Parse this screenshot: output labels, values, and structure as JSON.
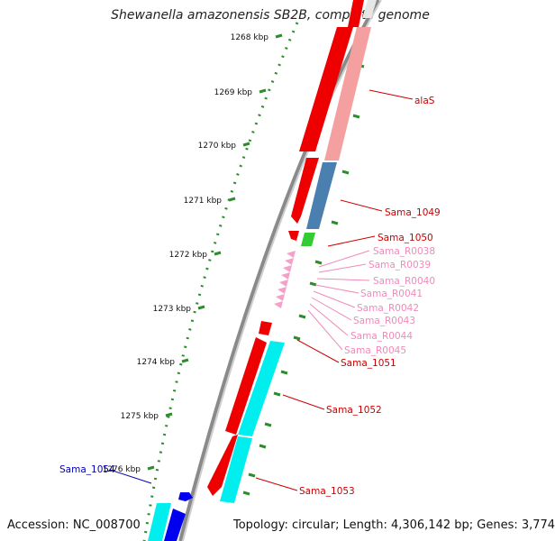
{
  "title": "Shewanella amazonensis SB2B, complete genome",
  "accession_text": "Accession: NC_008700",
  "summary_text": "Topology: circular; Length: 4,306,142 bp; Genes: 3,774",
  "colors": {
    "backbone": "#8a8a8a",
    "tick": "#2e8b2e",
    "forward_gene": "#ee0000",
    "forward_gene_light": "#f4a0a0",
    "blue_gene": "#4a7fb0",
    "green_gene": "#33cc33",
    "rna": "#f5a0c8",
    "cyan_gene": "#00eeee",
    "strong_blue": "#0000ee"
  },
  "scale": {
    "labels": [
      "1268 kbp",
      "1269 kbp",
      "1270 kbp",
      "1271 kbp",
      "1272 kbp",
      "1273 kbp",
      "1274 kbp",
      "1275 kbp",
      "1276 kbp"
    ]
  },
  "features": [
    {
      "label": "alaS",
      "color": "#cc0000"
    },
    {
      "label": "Sama_1049",
      "color": "#cc0000"
    },
    {
      "label": "Sama_1050",
      "color": "#cc0000"
    },
    {
      "label": "Sama_R0038",
      "color": "#f08ab8"
    },
    {
      "label": "Sama_R0039",
      "color": "#f08ab8"
    },
    {
      "label": "Sama_R0040",
      "color": "#f08ab8"
    },
    {
      "label": "Sama_R0041",
      "color": "#f08ab8"
    },
    {
      "label": "Sama_R0042",
      "color": "#f08ab8"
    },
    {
      "label": "Sama_R0043",
      "color": "#f08ab8"
    },
    {
      "label": "Sama_R0044",
      "color": "#f08ab8"
    },
    {
      "label": "Sama_R0045",
      "color": "#f08ab8"
    },
    {
      "label": "Sama_1051",
      "color": "#cc0000"
    },
    {
      "label": "Sama_1052",
      "color": "#cc0000"
    },
    {
      "label": "Sama_1053",
      "color": "#cc0000"
    },
    {
      "label": "Sama_1054",
      "color": "#0000bb"
    }
  ]
}
